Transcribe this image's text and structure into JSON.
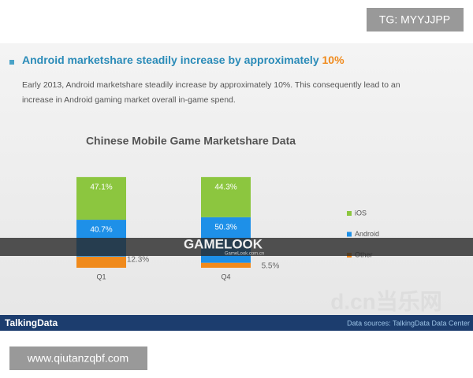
{
  "overlay": {
    "tag": "TG: MYYJJPP",
    "url": "www.qiutanzqbf.com"
  },
  "slide": {
    "headline": "Android marketshare steadily increase by approximately ",
    "headline_highlight": "10%",
    "body_line1": "Early 2013, Android marketshare steadily increase by approximately 10%. This consequently lead to an",
    "body_line2": "increase in Android gaming market overall in-game spend.",
    "banner": "GAMELOOK",
    "banner_sub": "GameLook.com.cn",
    "watermark": "d.cn当乐网",
    "footer_logo": "TalkingData",
    "footer_source": "Data sources: TalkingData Data Center"
  },
  "chart_data": {
    "type": "stacked_bar",
    "title": "Chinese Mobile Game Marketshare Data",
    "categories": [
      "Q1",
      "Q4"
    ],
    "series": [
      {
        "name": "iOS",
        "color": "#8cc63f",
        "values": [
          47.1,
          44.3
        ],
        "value_labels": [
          "47.1%",
          "44.3%"
        ]
      },
      {
        "name": "Android",
        "color": "#1e90e8",
        "values": [
          40.7,
          50.3
        ],
        "value_labels": [
          "40.7%",
          "50.3%"
        ]
      },
      {
        "name": "Other",
        "color": "#f08a1c",
        "values": [
          12.3,
          5.5
        ],
        "value_labels": [
          "12.3%",
          "5.5%"
        ]
      }
    ]
  }
}
